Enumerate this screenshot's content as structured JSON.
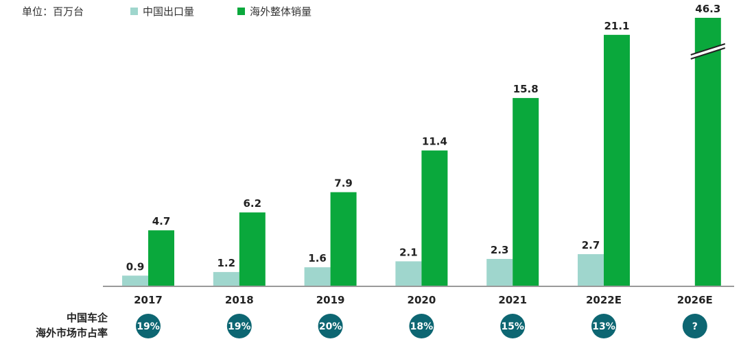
{
  "chart_data": {
    "type": "bar",
    "unit_label": "单位：百万台",
    "categories": [
      "2017",
      "2018",
      "2019",
      "2020",
      "2021",
      "2022E",
      "2026E"
    ],
    "series": [
      {
        "name": "中国出口量",
        "values": [
          0.9,
          1.2,
          1.6,
          2.1,
          2.3,
          2.7,
          null
        ],
        "labels": [
          "0.9",
          "1.2",
          "1.6",
          "2.1",
          "2.3",
          "2.7",
          ""
        ]
      },
      {
        "name": "海外整体销量",
        "values": [
          4.7,
          6.2,
          7.9,
          11.4,
          15.8,
          21.1,
          46.3
        ],
        "labels": [
          "4.7",
          "6.2",
          "7.9",
          "11.4",
          "15.8",
          "21.1",
          "46.3"
        ]
      }
    ],
    "axis_break": {
      "category": "2026E",
      "series": "海外整体销量"
    },
    "ylim": [
      0,
      22
    ],
    "legend_position": "top-left",
    "share_row": {
      "label_lines": [
        "中国车企",
        "海外市场市占率"
      ],
      "values": [
        "19%",
        "19%",
        "20%",
        "18%",
        "15%",
        "13%",
        "?"
      ]
    },
    "colors": {
      "export": "#9fd6cd",
      "overseas": "#0aa83c",
      "badge": "#0d6672",
      "axis": "#999999"
    }
  }
}
